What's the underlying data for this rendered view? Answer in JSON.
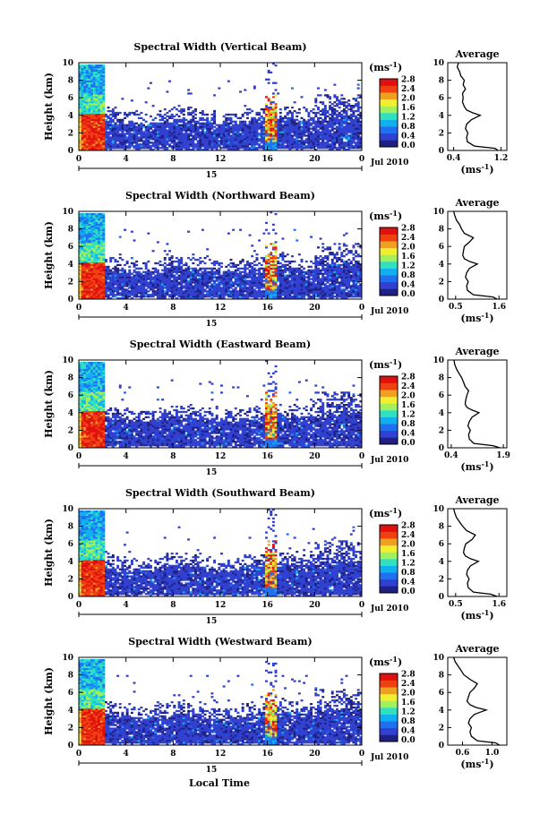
{
  "chart_data": {
    "type": "heatmap",
    "x_ticks": [
      "0",
      "4",
      "8",
      "12",
      "16",
      "20",
      "0"
    ],
    "y_ticks": [
      "0",
      "2",
      "4",
      "6",
      "8",
      "10"
    ],
    "ylabel": "Height (km)",
    "xlabel": "Local Time",
    "date_day": "15",
    "date_month": "Jul 2010",
    "xlim": [
      0,
      24
    ],
    "ylim": [
      0,
      10
    ],
    "colorbar": {
      "unit": "(ms",
      "unit_exp": "-1",
      "unit_close": ")",
      "ticks": [
        "2.8",
        "2.4",
        "2.0",
        "1.6",
        "1.2",
        "0.8",
        "0.4",
        "0.0"
      ],
      "range": [
        0,
        2.8
      ],
      "colors": [
        "#202080",
        "#3040d0",
        "#2070f0",
        "#10b0f0",
        "#30e0c0",
        "#a0f060",
        "#f0f030",
        "#f0a020",
        "#f04010",
        "#e01010"
      ]
    },
    "profile_title": "Average",
    "profile_unit": "(ms",
    "panels": [
      {
        "title": "Spectral Width (Vertical Beam)",
        "profile_ticks": [
          "0.4",
          "1.2"
        ],
        "profile_xlim": [
          0.3,
          1.3
        ],
        "profile": [
          [
            0.0,
            1.15
          ],
          [
            0.25,
            1.1
          ],
          [
            0.5,
            0.75
          ],
          [
            1.0,
            0.63
          ],
          [
            1.5,
            0.62
          ],
          [
            2.0,
            0.64
          ],
          [
            2.5,
            0.6
          ],
          [
            3.0,
            0.62
          ],
          [
            3.5,
            0.7
          ],
          [
            4.0,
            0.85
          ],
          [
            4.3,
            0.72
          ],
          [
            4.6,
            0.62
          ],
          [
            5.0,
            0.58
          ],
          [
            5.5,
            0.55
          ],
          [
            6.0,
            0.56
          ],
          [
            6.5,
            0.55
          ],
          [
            7.0,
            0.6
          ],
          [
            7.5,
            0.56
          ],
          [
            8.0,
            0.58
          ],
          [
            8.5,
            0.52
          ],
          [
            9.0,
            0.5
          ],
          [
            9.5,
            0.46
          ],
          [
            10.0,
            0.48
          ]
        ]
      },
      {
        "title": "Spectral Width (Northward Beam)",
        "profile_ticks": [
          "0.5",
          "1.6"
        ],
        "profile_xlim": [
          0.3,
          1.8
        ],
        "profile": [
          [
            0.0,
            1.55
          ],
          [
            0.25,
            1.45
          ],
          [
            0.5,
            0.95
          ],
          [
            1.0,
            0.8
          ],
          [
            1.5,
            0.78
          ],
          [
            2.0,
            0.82
          ],
          [
            2.5,
            0.75
          ],
          [
            3.0,
            0.78
          ],
          [
            3.5,
            0.85
          ],
          [
            4.0,
            1.05
          ],
          [
            4.3,
            0.85
          ],
          [
            4.6,
            0.72
          ],
          [
            5.0,
            0.68
          ],
          [
            5.5,
            0.7
          ],
          [
            6.0,
            0.72
          ],
          [
            6.5,
            0.85
          ],
          [
            7.0,
            0.95
          ],
          [
            7.5,
            0.72
          ],
          [
            8.0,
            0.65
          ],
          [
            8.5,
            0.6
          ],
          [
            9.0,
            0.52
          ],
          [
            9.5,
            0.48
          ],
          [
            10.0,
            0.45
          ]
        ]
      },
      {
        "title": "Spectral Width (Eastward Beam)",
        "profile_ticks": [
          "0.4",
          "1.9"
        ],
        "profile_xlim": [
          0.3,
          2.0
        ],
        "profile": [
          [
            0.0,
            1.8
          ],
          [
            0.25,
            1.6
          ],
          [
            0.5,
            1.05
          ],
          [
            1.0,
            0.92
          ],
          [
            1.5,
            0.9
          ],
          [
            2.0,
            0.95
          ],
          [
            2.5,
            0.88
          ],
          [
            3.0,
            0.92
          ],
          [
            3.5,
            1.0
          ],
          [
            4.0,
            1.2
          ],
          [
            4.3,
            1.0
          ],
          [
            4.6,
            0.85
          ],
          [
            5.0,
            0.8
          ],
          [
            5.5,
            0.82
          ],
          [
            6.0,
            0.85
          ],
          [
            6.5,
            0.9
          ],
          [
            7.0,
            0.8
          ],
          [
            7.5,
            0.75
          ],
          [
            8.0,
            0.7
          ],
          [
            8.5,
            0.62
          ],
          [
            9.0,
            0.55
          ],
          [
            9.5,
            0.5
          ],
          [
            10.0,
            0.48
          ]
        ]
      },
      {
        "title": "Spectral Width (Southward Beam)",
        "profile_ticks": [
          "0.5",
          "1.6"
        ],
        "profile_xlim": [
          0.3,
          1.8
        ],
        "profile": [
          [
            0.0,
            1.55
          ],
          [
            0.25,
            1.4
          ],
          [
            0.5,
            0.95
          ],
          [
            1.0,
            0.82
          ],
          [
            1.5,
            0.8
          ],
          [
            2.0,
            0.84
          ],
          [
            2.5,
            0.78
          ],
          [
            3.0,
            0.8
          ],
          [
            3.5,
            0.88
          ],
          [
            4.0,
            1.08
          ],
          [
            4.3,
            0.88
          ],
          [
            4.6,
            0.75
          ],
          [
            5.0,
            0.7
          ],
          [
            5.5,
            0.72
          ],
          [
            6.0,
            0.76
          ],
          [
            6.5,
            0.92
          ],
          [
            7.0,
            1.0
          ],
          [
            7.5,
            0.78
          ],
          [
            8.0,
            0.68
          ],
          [
            8.5,
            0.6
          ],
          [
            9.0,
            0.52
          ],
          [
            9.5,
            0.48
          ],
          [
            10.0,
            0.45
          ]
        ]
      },
      {
        "title": "Spectral Width (Westward Beam)",
        "profile_ticks": [
          "0.6",
          "1.0"
        ],
        "profile_xlim": [
          0.4,
          1.2
        ],
        "profile": [
          [
            0.0,
            1.1
          ],
          [
            0.25,
            1.05
          ],
          [
            0.5,
            0.8
          ],
          [
            1.0,
            0.72
          ],
          [
            1.5,
            0.7
          ],
          [
            2.0,
            0.72
          ],
          [
            2.5,
            0.68
          ],
          [
            3.0,
            0.7
          ],
          [
            3.5,
            0.76
          ],
          [
            4.0,
            0.92
          ],
          [
            4.3,
            0.78
          ],
          [
            4.6,
            0.7
          ],
          [
            5.0,
            0.66
          ],
          [
            5.5,
            0.68
          ],
          [
            6.0,
            0.7
          ],
          [
            6.5,
            0.76
          ],
          [
            7.0,
            0.8
          ],
          [
            7.5,
            0.7
          ],
          [
            8.0,
            0.62
          ],
          [
            8.5,
            0.58
          ],
          [
            9.0,
            0.54
          ],
          [
            9.5,
            0.5
          ],
          [
            10.0,
            0.48
          ]
        ]
      }
    ]
  }
}
